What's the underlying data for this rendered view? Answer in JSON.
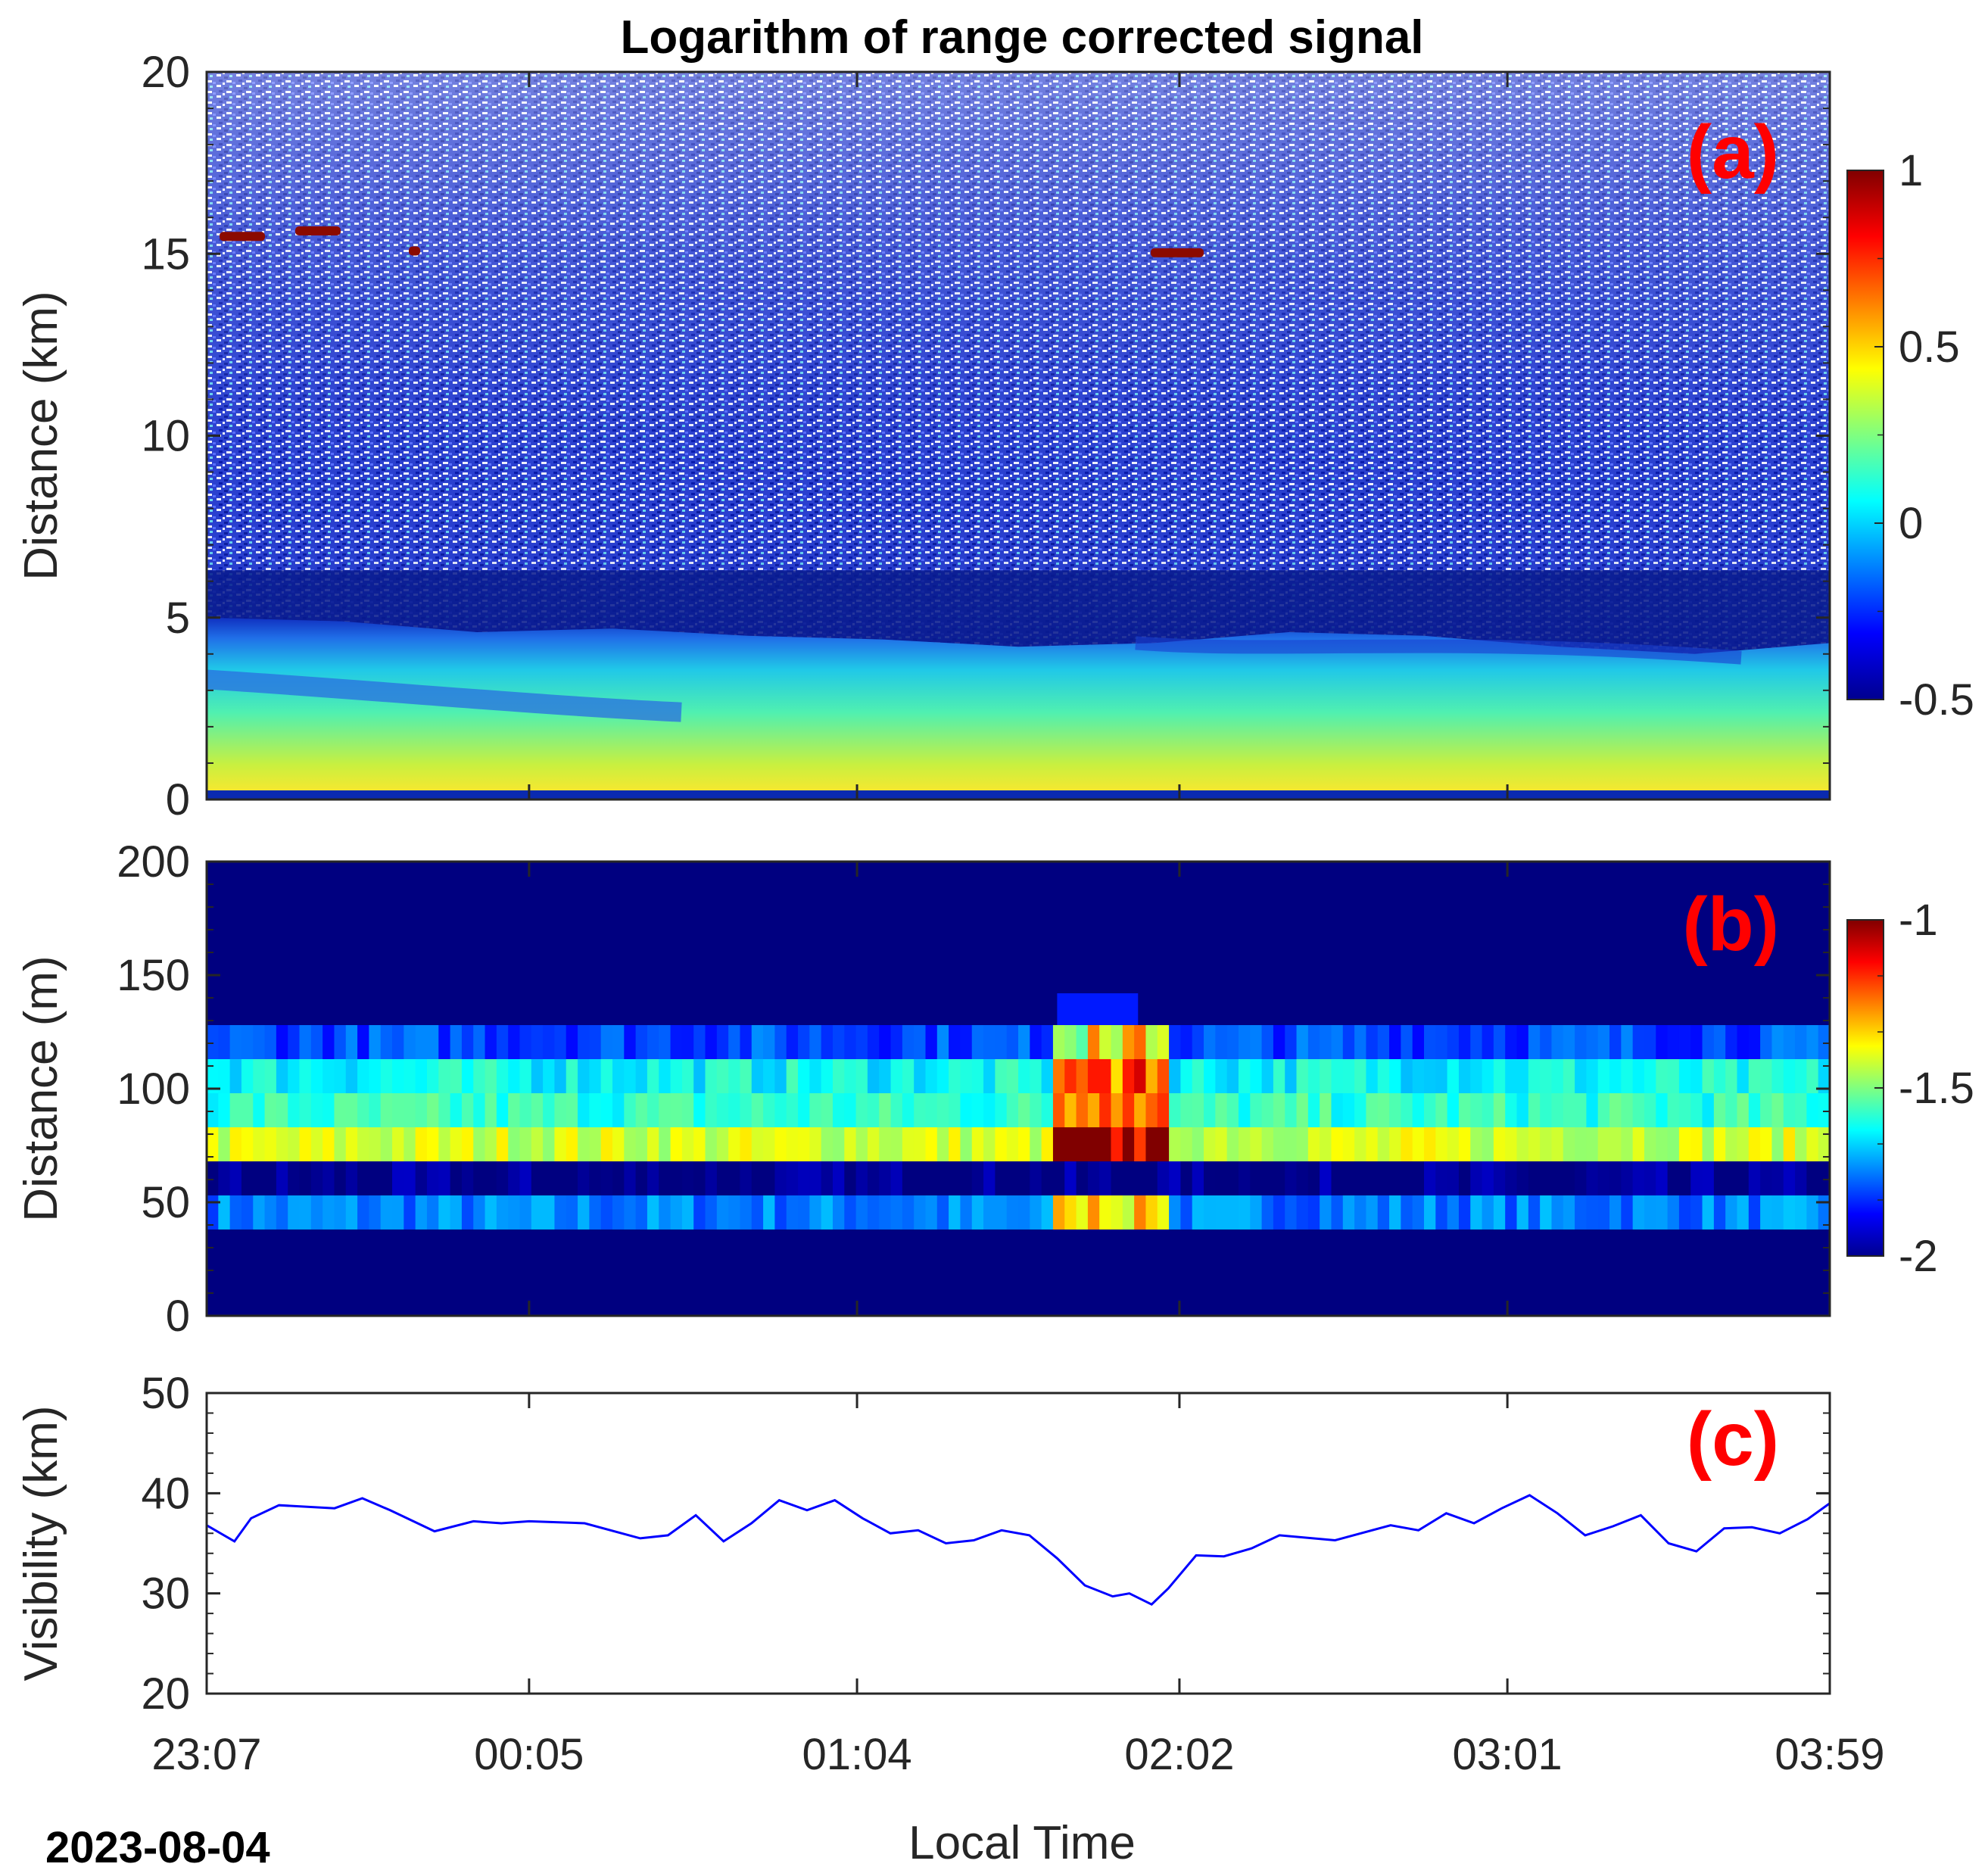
{
  "figure": {
    "title": "Logarithm of range corrected signal",
    "date": "2023-08-04",
    "xlabel": "Local Time"
  },
  "chart_data": [
    {
      "type": "heatmap",
      "panel": "(a)",
      "xlabel": "",
      "ylabel": "Distance (km)",
      "xticks": [
        "23:07",
        "00:05",
        "01:04",
        "02:02",
        "03:01",
        "03:59"
      ],
      "yticks": [
        0,
        5,
        10,
        15,
        20
      ],
      "ylim": [
        0,
        20
      ],
      "colorbar": {
        "ticks": [
          "1",
          "0.5",
          "0",
          "-0.5"
        ],
        "range": [
          -0.5,
          1
        ]
      },
      "colormap": "jet",
      "features": {
        "aerosol_layer_top_km": [
          5.0,
          4.9,
          4.6,
          4.7,
          4.5,
          4.4,
          4.2,
          4.3,
          4.6,
          4.5,
          4.2,
          4.0,
          4.3
        ],
        "noise_above_km": 6.3,
        "high_cloud_km": 15.5
      }
    },
    {
      "type": "heatmap",
      "panel": "(b)",
      "xlabel": "",
      "ylabel": "Distance (m)",
      "xticks": [
        "23:07",
        "00:05",
        "01:04",
        "02:02",
        "03:01",
        "03:59"
      ],
      "yticks": [
        0,
        50,
        100,
        150,
        200
      ],
      "ylim": [
        0,
        200
      ],
      "colorbar": {
        "ticks": [
          "-1",
          "-1.5",
          "-2"
        ],
        "range": [
          -2,
          -1
        ]
      },
      "colormap": "jet",
      "bands": [
        {
          "from_m": 38,
          "to_m": 53,
          "value": -1.75
        },
        {
          "from_m": 53,
          "to_m": 68,
          "value": -2.0
        },
        {
          "from_m": 68,
          "to_m": 83,
          "value": -1.42
        },
        {
          "from_m": 83,
          "to_m": 98,
          "value": -1.58
        },
        {
          "from_m": 98,
          "to_m": 113,
          "value": -1.62
        },
        {
          "from_m": 113,
          "to_m": 128,
          "value": -1.8
        }
      ],
      "event": {
        "start": "01:40",
        "end": "02:00",
        "peak_value": -1.05
      }
    },
    {
      "type": "line",
      "panel": "(c)",
      "xlabel": "Local Time",
      "ylabel": "Visibility (km)",
      "xticks": [
        "23:07",
        "00:05",
        "01:04",
        "02:02",
        "03:01",
        "03:59"
      ],
      "yticks": [
        20,
        30,
        40,
        50
      ],
      "ylim": [
        20,
        50
      ],
      "series": [
        {
          "color": "#0000ff",
          "x": [
            "23:07",
            "23:12",
            "23:15",
            "23:20",
            "23:30",
            "23:35",
            "23:40",
            "23:48",
            "23:55",
            "00:00",
            "00:05",
            "00:15",
            "00:25",
            "00:30",
            "00:35",
            "00:40",
            "00:45",
            "00:50",
            "00:55",
            "01:00",
            "01:05",
            "01:10",
            "01:15",
            "01:20",
            "01:25",
            "01:30",
            "01:35",
            "01:40",
            "01:45",
            "01:50",
            "01:53",
            "01:57",
            "02:00",
            "02:05",
            "02:10",
            "02:15",
            "02:20",
            "02:30",
            "02:40",
            "02:45",
            "02:50",
            "02:55",
            "03:00",
            "03:05",
            "03:10",
            "03:15",
            "03:20",
            "03:25",
            "03:30",
            "03:35",
            "03:40",
            "03:45",
            "03:50",
            "03:55",
            "03:59"
          ],
          "y": [
            36.8,
            35.2,
            37.5,
            38.8,
            38.5,
            39.5,
            38.3,
            36.2,
            37.2,
            37.0,
            37.2,
            37.0,
            35.5,
            35.8,
            37.8,
            35.2,
            37.0,
            39.3,
            38.3,
            39.3,
            37.5,
            36.0,
            36.3,
            35.0,
            35.3,
            36.3,
            35.8,
            33.5,
            30.8,
            29.7,
            30.0,
            28.9,
            30.5,
            33.8,
            33.7,
            34.5,
            35.8,
            35.3,
            36.8,
            36.3,
            38.0,
            37.0,
            38.5,
            39.8,
            38.0,
            35.8,
            36.7,
            37.8,
            35.0,
            34.2,
            36.5,
            36.6,
            36.0,
            37.4,
            39.0
          ]
        }
      ]
    }
  ]
}
